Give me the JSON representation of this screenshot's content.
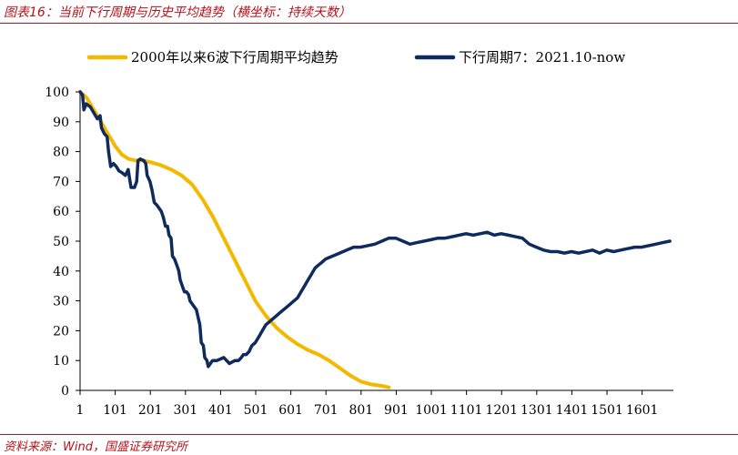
{
  "figure": {
    "title": "图表16：当前下行周期与历史平均趋势（横坐标：持续天数）",
    "source": "资料来源：Wind，国盛证券研究所"
  },
  "chart_data": {
    "type": "line",
    "title": "图表16：当前下行周期与历史平均趋势（横坐标：持续天数）",
    "xlabel": "",
    "ylabel": "",
    "xlim": [
      1,
      1690
    ],
    "ylim": [
      0,
      100
    ],
    "grid": false,
    "legend_position": "top",
    "x_ticks": [
      "1",
      "101",
      "201",
      "301",
      "401",
      "501",
      "601",
      "701",
      "801",
      "901",
      "1001",
      "1101",
      "1201",
      "1301",
      "1401",
      "1501",
      "1601"
    ],
    "y_ticks": [
      0,
      10,
      20,
      30,
      40,
      50,
      60,
      70,
      80,
      90,
      100
    ],
    "series": [
      {
        "name": "2000年以来6波下行周期平均趋势",
        "color": "#f5b800",
        "points": [
          [
            1,
            100
          ],
          [
            20,
            98
          ],
          [
            40,
            94
          ],
          [
            60,
            90
          ],
          [
            80,
            86
          ],
          [
            100,
            82
          ],
          [
            120,
            79
          ],
          [
            140,
            77.5
          ],
          [
            160,
            77
          ],
          [
            180,
            77
          ],
          [
            200,
            76.5
          ],
          [
            230,
            75.5
          ],
          [
            260,
            74
          ],
          [
            290,
            72
          ],
          [
            320,
            69
          ],
          [
            350,
            64
          ],
          [
            380,
            58
          ],
          [
            410,
            51
          ],
          [
            440,
            44
          ],
          [
            470,
            37
          ],
          [
            500,
            30
          ],
          [
            530,
            25
          ],
          [
            560,
            21
          ],
          [
            590,
            18
          ],
          [
            620,
            15.5
          ],
          [
            650,
            13.5
          ],
          [
            680,
            12
          ],
          [
            710,
            10
          ],
          [
            740,
            7.5
          ],
          [
            770,
            5
          ],
          [
            800,
            3
          ],
          [
            830,
            2
          ],
          [
            860,
            1.5
          ],
          [
            880,
            1
          ]
        ]
      },
      {
        "name": "下行周期7：2021.10-now",
        "color": "#0f2a5c",
        "points": [
          [
            1,
            100
          ],
          [
            8,
            99
          ],
          [
            12,
            94
          ],
          [
            18,
            96
          ],
          [
            30,
            95
          ],
          [
            40,
            93
          ],
          [
            50,
            91
          ],
          [
            58,
            92
          ],
          [
            62,
            88
          ],
          [
            70,
            86
          ],
          [
            78,
            85
          ],
          [
            82,
            80
          ],
          [
            88,
            75
          ],
          [
            96,
            76
          ],
          [
            104,
            75
          ],
          [
            112,
            73.5
          ],
          [
            120,
            73
          ],
          [
            130,
            72
          ],
          [
            138,
            74
          ],
          [
            142,
            71
          ],
          [
            146,
            68
          ],
          [
            156,
            68
          ],
          [
            162,
            70
          ],
          [
            166,
            77
          ],
          [
            172,
            77.5
          ],
          [
            182,
            77
          ],
          [
            188,
            76
          ],
          [
            192,
            72
          ],
          [
            200,
            70
          ],
          [
            206,
            67
          ],
          [
            212,
            63
          ],
          [
            220,
            62
          ],
          [
            226,
            61
          ],
          [
            232,
            60
          ],
          [
            238,
            58
          ],
          [
            244,
            55
          ],
          [
            250,
            55
          ],
          [
            254,
            52
          ],
          [
            260,
            51
          ],
          [
            264,
            45
          ],
          [
            270,
            44
          ],
          [
            276,
            42
          ],
          [
            282,
            40
          ],
          [
            286,
            37
          ],
          [
            292,
            35
          ],
          [
            298,
            33
          ],
          [
            304,
            33
          ],
          [
            310,
            32
          ],
          [
            314,
            30
          ],
          [
            320,
            29
          ],
          [
            326,
            28
          ],
          [
            332,
            27
          ],
          [
            336,
            25
          ],
          [
            342,
            22
          ],
          [
            346,
            16
          ],
          [
            352,
            15
          ],
          [
            356,
            11
          ],
          [
            362,
            10
          ],
          [
            366,
            8
          ],
          [
            372,
            9
          ],
          [
            378,
            10
          ],
          [
            390,
            10
          ],
          [
            400,
            10.5
          ],
          [
            410,
            11
          ],
          [
            418,
            10
          ],
          [
            426,
            9
          ],
          [
            434,
            9.5
          ],
          [
            442,
            10
          ],
          [
            452,
            10
          ],
          [
            460,
            11
          ],
          [
            466,
            12
          ],
          [
            474,
            12
          ],
          [
            482,
            13
          ],
          [
            490,
            15
          ],
          [
            500,
            16
          ],
          [
            510,
            18
          ],
          [
            520,
            20
          ],
          [
            530,
            22
          ],
          [
            540,
            23
          ],
          [
            550,
            24
          ],
          [
            560,
            25
          ],
          [
            570,
            26
          ],
          [
            580,
            27
          ],
          [
            590,
            28
          ],
          [
            600,
            29
          ],
          [
            610,
            30
          ],
          [
            620,
            31
          ],
          [
            630,
            33
          ],
          [
            640,
            35
          ],
          [
            650,
            37
          ],
          [
            660,
            39
          ],
          [
            670,
            41
          ],
          [
            680,
            42
          ],
          [
            690,
            43
          ],
          [
            700,
            44
          ],
          [
            710,
            44.5
          ],
          [
            720,
            45
          ],
          [
            740,
            46
          ],
          [
            760,
            47
          ],
          [
            780,
            48
          ],
          [
            800,
            48
          ],
          [
            820,
            48.5
          ],
          [
            840,
            49
          ],
          [
            860,
            50
          ],
          [
            880,
            51
          ],
          [
            900,
            51
          ],
          [
            920,
            50
          ],
          [
            940,
            49
          ],
          [
            960,
            49.5
          ],
          [
            980,
            50
          ],
          [
            1000,
            50.5
          ],
          [
            1020,
            51
          ],
          [
            1040,
            51
          ],
          [
            1060,
            51.5
          ],
          [
            1080,
            52
          ],
          [
            1100,
            52.5
          ],
          [
            1120,
            52
          ],
          [
            1140,
            52.5
          ],
          [
            1160,
            53
          ],
          [
            1180,
            52
          ],
          [
            1200,
            52.5
          ],
          [
            1220,
            52
          ],
          [
            1240,
            51.5
          ],
          [
            1260,
            51
          ],
          [
            1280,
            49
          ],
          [
            1300,
            48
          ],
          [
            1320,
            47
          ],
          [
            1340,
            46.5
          ],
          [
            1360,
            46.5
          ],
          [
            1380,
            46
          ],
          [
            1400,
            46.5
          ],
          [
            1420,
            46
          ],
          [
            1440,
            46.5
          ],
          [
            1460,
            47
          ],
          [
            1480,
            46
          ],
          [
            1500,
            47
          ],
          [
            1520,
            46.5
          ],
          [
            1540,
            47
          ],
          [
            1560,
            47.5
          ],
          [
            1580,
            48
          ],
          [
            1600,
            48
          ],
          [
            1620,
            48.5
          ],
          [
            1640,
            49
          ],
          [
            1660,
            49.5
          ],
          [
            1680,
            50
          ]
        ]
      }
    ]
  }
}
